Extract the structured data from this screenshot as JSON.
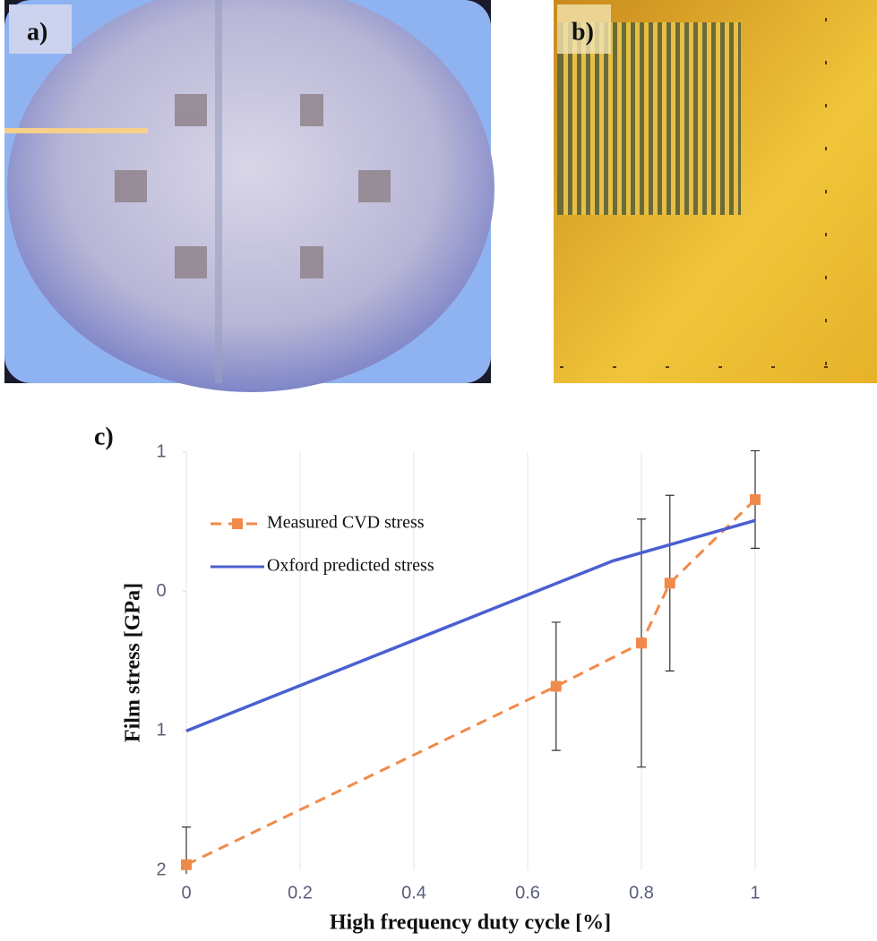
{
  "panels": [
    "a)",
    "b)",
    "c)"
  ],
  "chart_data": {
    "type": "line",
    "xlabel": "High frequency duty cycle [%]",
    "ylabel": "Film stress [GPa]",
    "xlim": [
      0,
      1
    ],
    "xticks": [
      0,
      0.2,
      0.4,
      0.6,
      0.8,
      1
    ],
    "ylim": [
      -2,
      1
    ],
    "yticks": [
      {
        "value": -2,
        "label": "2"
      },
      {
        "value": -1,
        "label": "1"
      },
      0,
      1
    ],
    "grid": true,
    "legend": "upper left",
    "series": [
      {
        "name": "Measured CVD stress",
        "color": "#f08a4b",
        "dashed": true,
        "marker": "square",
        "x": [
          0,
          0.65,
          0.8,
          0.85,
          1
        ],
        "values": [
          -1.96,
          -0.68,
          -0.37,
          0.06,
          0.66
        ],
        "errors": [
          0.27,
          0.46,
          0.89,
          0.63,
          0.35
        ]
      },
      {
        "name": "Oxford predicted stress",
        "color": "#4a5fd1",
        "dashed": false,
        "x": [
          0,
          0.75,
          1
        ],
        "values": [
          -1.0,
          0.22,
          0.51
        ]
      }
    ]
  }
}
